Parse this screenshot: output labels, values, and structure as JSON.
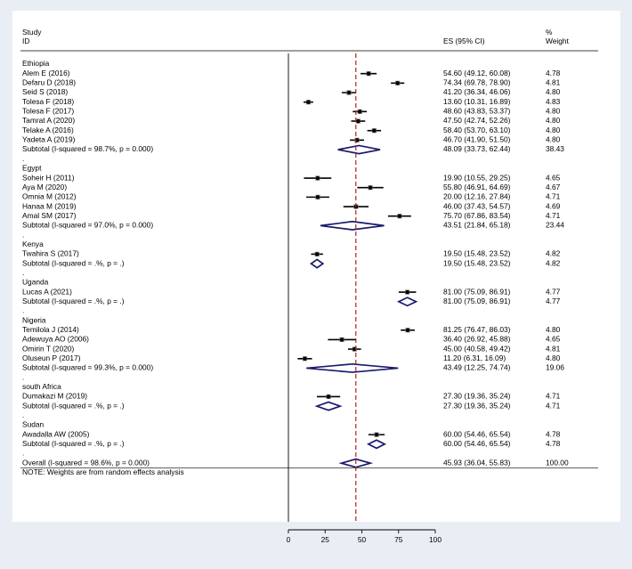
{
  "chart_data": {
    "type": "forest",
    "header": {
      "study_label": "Study",
      "id_label": "ID",
      "es_label": "ES (95% CI)",
      "pct_label": "%",
      "weight_label": "Weight"
    },
    "rows": [
      {
        "kind": "group",
        "label": "Ethiopia"
      },
      {
        "kind": "study",
        "label": "Alem E (2016)",
        "es": 54.6,
        "lo": 49.12,
        "hi": 60.08,
        "ci": "54.60 (49.12, 60.08)",
        "weight": "4.78"
      },
      {
        "kind": "study",
        "label": "Defaru D (2018)",
        "es": 74.34,
        "lo": 69.78,
        "hi": 78.9,
        "ci": "74.34 (69.78, 78.90)",
        "weight": "4.81"
      },
      {
        "kind": "study",
        "label": "Seid S (2018)",
        "es": 41.2,
        "lo": 36.34,
        "hi": 46.06,
        "ci": "41.20 (36.34, 46.06)",
        "weight": "4.80"
      },
      {
        "kind": "study",
        "label": "Tolesa F (2018)",
        "es": 13.6,
        "lo": 10.31,
        "hi": 16.89,
        "ci": "13.60 (10.31, 16.89)",
        "weight": "4.83"
      },
      {
        "kind": "study",
        "label": "Tolesa F (2017)",
        "es": 48.6,
        "lo": 43.83,
        "hi": 53.37,
        "ci": "48.60 (43.83, 53.37)",
        "weight": "4.80"
      },
      {
        "kind": "study",
        "label": "Tamrat A (2020)",
        "es": 47.5,
        "lo": 42.74,
        "hi": 52.26,
        "ci": "47.50 (42.74, 52.26)",
        "weight": "4.80"
      },
      {
        "kind": "study",
        "label": "Telake A (2016)",
        "es": 58.4,
        "lo": 53.7,
        "hi": 63.1,
        "ci": "58.40 (53.70, 63.10)",
        "weight": "4.80"
      },
      {
        "kind": "study",
        "label": "Yadeta A (2019)",
        "es": 46.7,
        "lo": 41.9,
        "hi": 51.5,
        "ci": "46.70 (41.90, 51.50)",
        "weight": "4.80"
      },
      {
        "kind": "subtotal",
        "label": "Subtotal  (I-squared = 98.7%, p = 0.000)",
        "es": 48.09,
        "lo": 33.73,
        "hi": 62.44,
        "ci": "48.09 (33.73, 62.44)",
        "weight": "38.43"
      },
      {
        "kind": "dot",
        "label": "."
      },
      {
        "kind": "group",
        "label": "Egypt"
      },
      {
        "kind": "study",
        "label": "Soheir H (2011)",
        "es": 19.9,
        "lo": 10.55,
        "hi": 29.25,
        "ci": "19.90 (10.55, 29.25)",
        "weight": "4.65"
      },
      {
        "kind": "study",
        "label": "Aya M (2020)",
        "es": 55.8,
        "lo": 46.91,
        "hi": 64.69,
        "ci": "55.80 (46.91, 64.69)",
        "weight": "4.67"
      },
      {
        "kind": "study",
        "label": "Omnia M (2012)",
        "es": 20.0,
        "lo": 12.16,
        "hi": 27.84,
        "ci": "20.00 (12.16, 27.84)",
        "weight": "4.71"
      },
      {
        "kind": "study",
        "label": "Hanaa M (2019)",
        "es": 46.0,
        "lo": 37.43,
        "hi": 54.57,
        "ci": "46.00 (37.43, 54.57)",
        "weight": "4.69"
      },
      {
        "kind": "study",
        "label": "Amal SM (2017)",
        "es": 75.7,
        "lo": 67.86,
        "hi": 83.54,
        "ci": "75.70 (67.86, 83.54)",
        "weight": "4.71"
      },
      {
        "kind": "subtotal",
        "label": "Subtotal  (I-squared = 97.0%, p = 0.000)",
        "es": 43.51,
        "lo": 21.84,
        "hi": 65.18,
        "ci": "43.51 (21.84, 65.18)",
        "weight": "23.44"
      },
      {
        "kind": "dot",
        "label": "."
      },
      {
        "kind": "group",
        "label": "Kenya"
      },
      {
        "kind": "study",
        "label": "Twahira S (2017)",
        "es": 19.5,
        "lo": 15.48,
        "hi": 23.52,
        "ci": "19.50 (15.48, 23.52)",
        "weight": "4.82"
      },
      {
        "kind": "subtotal",
        "label": "Subtotal  (I-squared = .%, p = .)",
        "es": 19.5,
        "lo": 15.48,
        "hi": 23.52,
        "ci": "19.50 (15.48, 23.52)",
        "weight": "4.82"
      },
      {
        "kind": "dot",
        "label": "."
      },
      {
        "kind": "group",
        "label": "Uganda"
      },
      {
        "kind": "study",
        "label": "Lucas A (2021)",
        "es": 81.0,
        "lo": 75.09,
        "hi": 86.91,
        "ci": "81.00 (75.09, 86.91)",
        "weight": "4.77"
      },
      {
        "kind": "subtotal",
        "label": "Subtotal  (I-squared = .%, p = .)",
        "es": 81.0,
        "lo": 75.09,
        "hi": 86.91,
        "ci": "81.00 (75.09, 86.91)",
        "weight": "4.77"
      },
      {
        "kind": "dot",
        "label": "."
      },
      {
        "kind": "group",
        "label": "Nigeria"
      },
      {
        "kind": "study",
        "label": "Temilola J (2014)",
        "es": 81.25,
        "lo": 76.47,
        "hi": 86.03,
        "ci": "81.25 (76.47, 86.03)",
        "weight": "4.80"
      },
      {
        "kind": "study",
        "label": "Adewuya AO (2006)",
        "es": 36.4,
        "lo": 26.92,
        "hi": 45.88,
        "ci": "36.40 (26.92, 45.88)",
        "weight": "4.65"
      },
      {
        "kind": "study",
        "label": "Omirin T (2020)",
        "es": 45.0,
        "lo": 40.58,
        "hi": 49.42,
        "ci": "45.00 (40.58, 49.42)",
        "weight": "4.81"
      },
      {
        "kind": "study",
        "label": "Oluseun P (2017)",
        "es": 11.2,
        "lo": 6.31,
        "hi": 16.09,
        "ci": "11.20 (6.31, 16.09)",
        "weight": "4.80"
      },
      {
        "kind": "subtotal",
        "label": "Subtotal  (I-squared = 99.3%, p = 0.000)",
        "es": 43.49,
        "lo": 12.25,
        "hi": 74.74,
        "ci": "43.49 (12.25, 74.74)",
        "weight": "19.06"
      },
      {
        "kind": "dot",
        "label": "."
      },
      {
        "kind": "group",
        "label": "south Africa"
      },
      {
        "kind": "study",
        "label": "Dumakazi M (2019)",
        "es": 27.3,
        "lo": 19.36,
        "hi": 35.24,
        "ci": "27.30 (19.36, 35.24)",
        "weight": "4.71"
      },
      {
        "kind": "subtotal",
        "label": "Subtotal  (I-squared = .%, p = .)",
        "es": 27.3,
        "lo": 19.36,
        "hi": 35.24,
        "ci": "27.30 (19.36, 35.24)",
        "weight": "4.71"
      },
      {
        "kind": "dot",
        "label": "."
      },
      {
        "kind": "group",
        "label": "Sudan"
      },
      {
        "kind": "study",
        "label": "Awadalla AW (2005)",
        "es": 60.0,
        "lo": 54.46,
        "hi": 65.54,
        "ci": "60.00 (54.46, 65.54)",
        "weight": "4.78"
      },
      {
        "kind": "subtotal",
        "label": "Subtotal  (I-squared = .%, p = .)",
        "es": 60.0,
        "lo": 54.46,
        "hi": 65.54,
        "ci": "60.00 (54.46, 65.54)",
        "weight": "4.78"
      },
      {
        "kind": "dot",
        "label": "."
      },
      {
        "kind": "overall",
        "label": "Overall  (I-squared = 98.6%, p = 0.000)",
        "es": 45.93,
        "lo": 36.04,
        "hi": 55.83,
        "ci": "45.93 (36.04, 55.83)",
        "weight": "100.00"
      },
      {
        "kind": "note",
        "label": "NOTE: Weights are from random effects analysis"
      }
    ],
    "xlim": [
      0,
      100
    ],
    "xticks": [
      0,
      25,
      50,
      75,
      100
    ],
    "reference_line": 45.93,
    "colors": {
      "background": "#e8eef3",
      "panel": "#ffffff",
      "diamond": "#1a1a6e",
      "reference_line": "#b22222",
      "marker": "#000000",
      "ci_line": "#000000"
    }
  }
}
